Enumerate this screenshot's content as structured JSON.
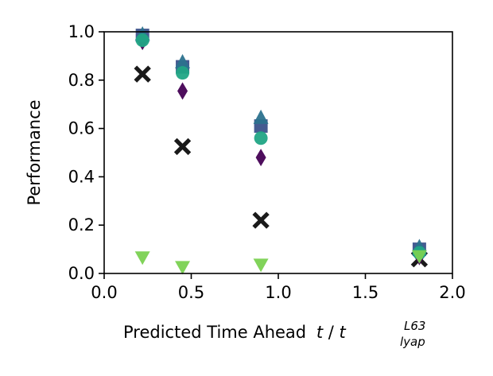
{
  "chart_data": {
    "type": "scatter",
    "title": "",
    "xlabel": "Predicted Time Ahead",
    "xlabel_math": {
      "t": "t",
      "slash": "/",
      "base": "t",
      "sup": "L63",
      "sub": "lyap"
    },
    "ylabel": "Performance",
    "xlim": [
      0.0,
      2.0
    ],
    "ylim": [
      0.0,
      1.0
    ],
    "xticks": [
      0.0,
      0.5,
      1.0,
      1.5,
      2.0
    ],
    "xtick_labels": [
      "0.0",
      "0.5",
      "1.0",
      "1.5",
      "2.0"
    ],
    "yticks": [
      0.0,
      0.2,
      0.4,
      0.6,
      0.8,
      1.0
    ],
    "ytick_labels": [
      "0.0",
      "0.2",
      "0.4",
      "0.6",
      "0.8",
      "1.0"
    ],
    "grid": false,
    "legend": false,
    "series": [
      {
        "marker": "x-filled",
        "color": "#1a1a1a",
        "x": [
          0.22,
          0.45,
          0.9,
          1.81
        ],
        "y": [
          0.825,
          0.525,
          0.22,
          0.06
        ]
      },
      {
        "marker": "thin-diamond",
        "color": "#440154",
        "x": [
          0.22,
          0.45,
          0.9,
          1.81
        ],
        "y": [
          0.96,
          0.755,
          0.48,
          0.07
        ]
      },
      {
        "marker": "square",
        "color": "#3b528b",
        "x": [
          0.22,
          0.45,
          0.9,
          1.81
        ],
        "y": [
          0.985,
          0.855,
          0.61,
          0.1
        ]
      },
      {
        "marker": "triangle-up",
        "color": "#2c728e",
        "x": [
          0.22,
          0.45,
          0.9,
          1.81
        ],
        "y": [
          0.99,
          0.875,
          0.645,
          0.11
        ]
      },
      {
        "marker": "circle",
        "color": "#21a585",
        "x": [
          0.22,
          0.45,
          0.9,
          1.81
        ],
        "y": [
          0.965,
          0.83,
          0.56,
          0.085
        ]
      },
      {
        "marker": "triangle-down",
        "color": "#7ad151",
        "x": [
          0.22,
          0.45,
          0.9,
          1.81
        ],
        "y": [
          0.065,
          0.025,
          0.035,
          0.07
        ]
      }
    ]
  }
}
